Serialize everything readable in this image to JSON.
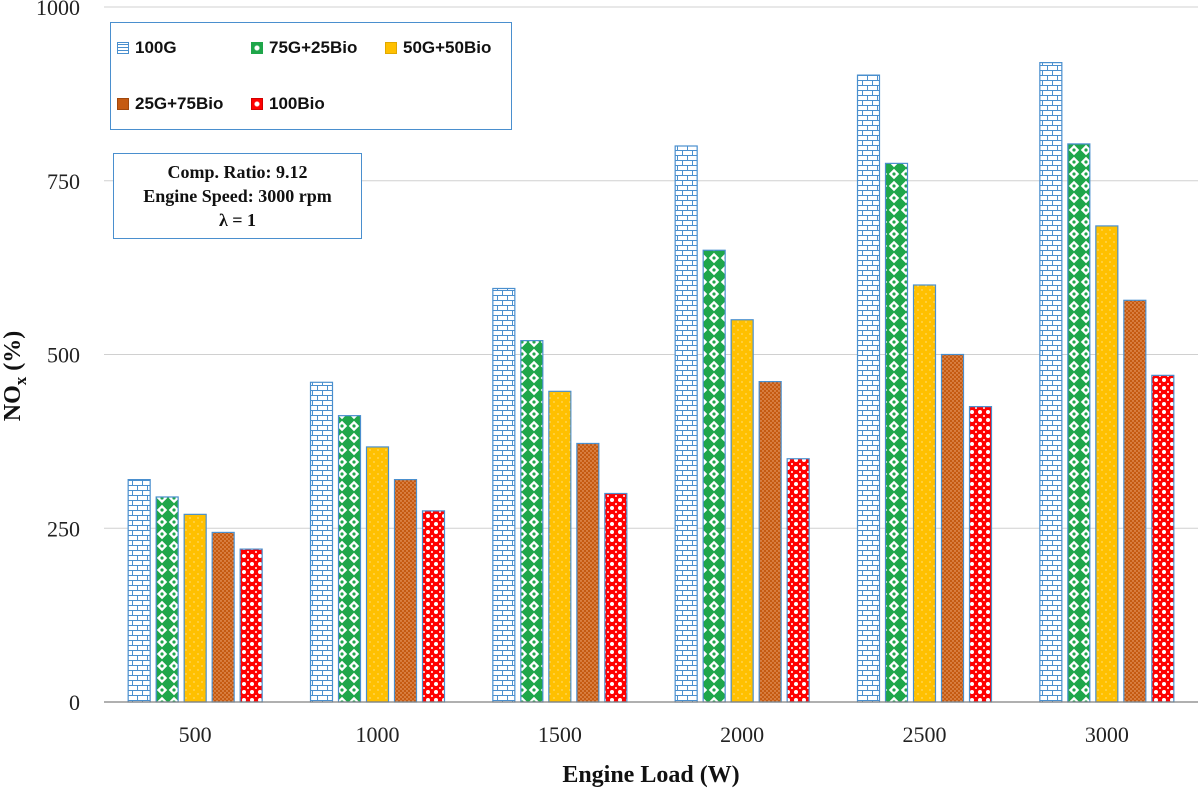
{
  "chart_data": {
    "type": "bar",
    "title": "",
    "xlabel": "Engine Load (W)",
    "ylabel_main": "NO",
    "ylabel_sub": "x",
    "ylabel_unit": " (%)",
    "ylim": [
      0,
      1000
    ],
    "yticks": [
      "0",
      "250",
      "500",
      "750",
      "1000"
    ],
    "ytick_values": [
      0,
      250,
      500,
      750,
      1000
    ],
    "categories": [
      "500",
      "1000",
      "1500",
      "2000",
      "2500",
      "3000"
    ],
    "series": [
      {
        "name": "100G",
        "values": [
          320,
          460,
          595,
          800,
          902,
          920
        ]
      },
      {
        "name": "75G+25Bio",
        "values": [
          295,
          412,
          520,
          650,
          775,
          803
        ]
      },
      {
        "name": "50G+50Bio",
        "values": [
          270,
          367,
          447,
          550,
          600,
          685
        ]
      },
      {
        "name": "25G+75Bio",
        "values": [
          244,
          320,
          372,
          461,
          500,
          578
        ]
      },
      {
        "name": "100Bio",
        "values": [
          220,
          275,
          300,
          350,
          425,
          470
        ]
      }
    ],
    "grid": true,
    "legend_position": "top-left"
  },
  "annotation": {
    "line1": "Comp. Ratio: 9.12",
    "line2": "Engine Speed: 3000 rpm",
    "line3": "λ = 1"
  },
  "colors": {
    "100G": "#4a8fce",
    "75G+25Bio": "#1fa64a",
    "50G+50Bio": "#ffc000",
    "25G+75Bio": "#c55a11",
    "100Bio": "#ff0000",
    "grid": "#d0d0d0",
    "axis": "#808080"
  }
}
